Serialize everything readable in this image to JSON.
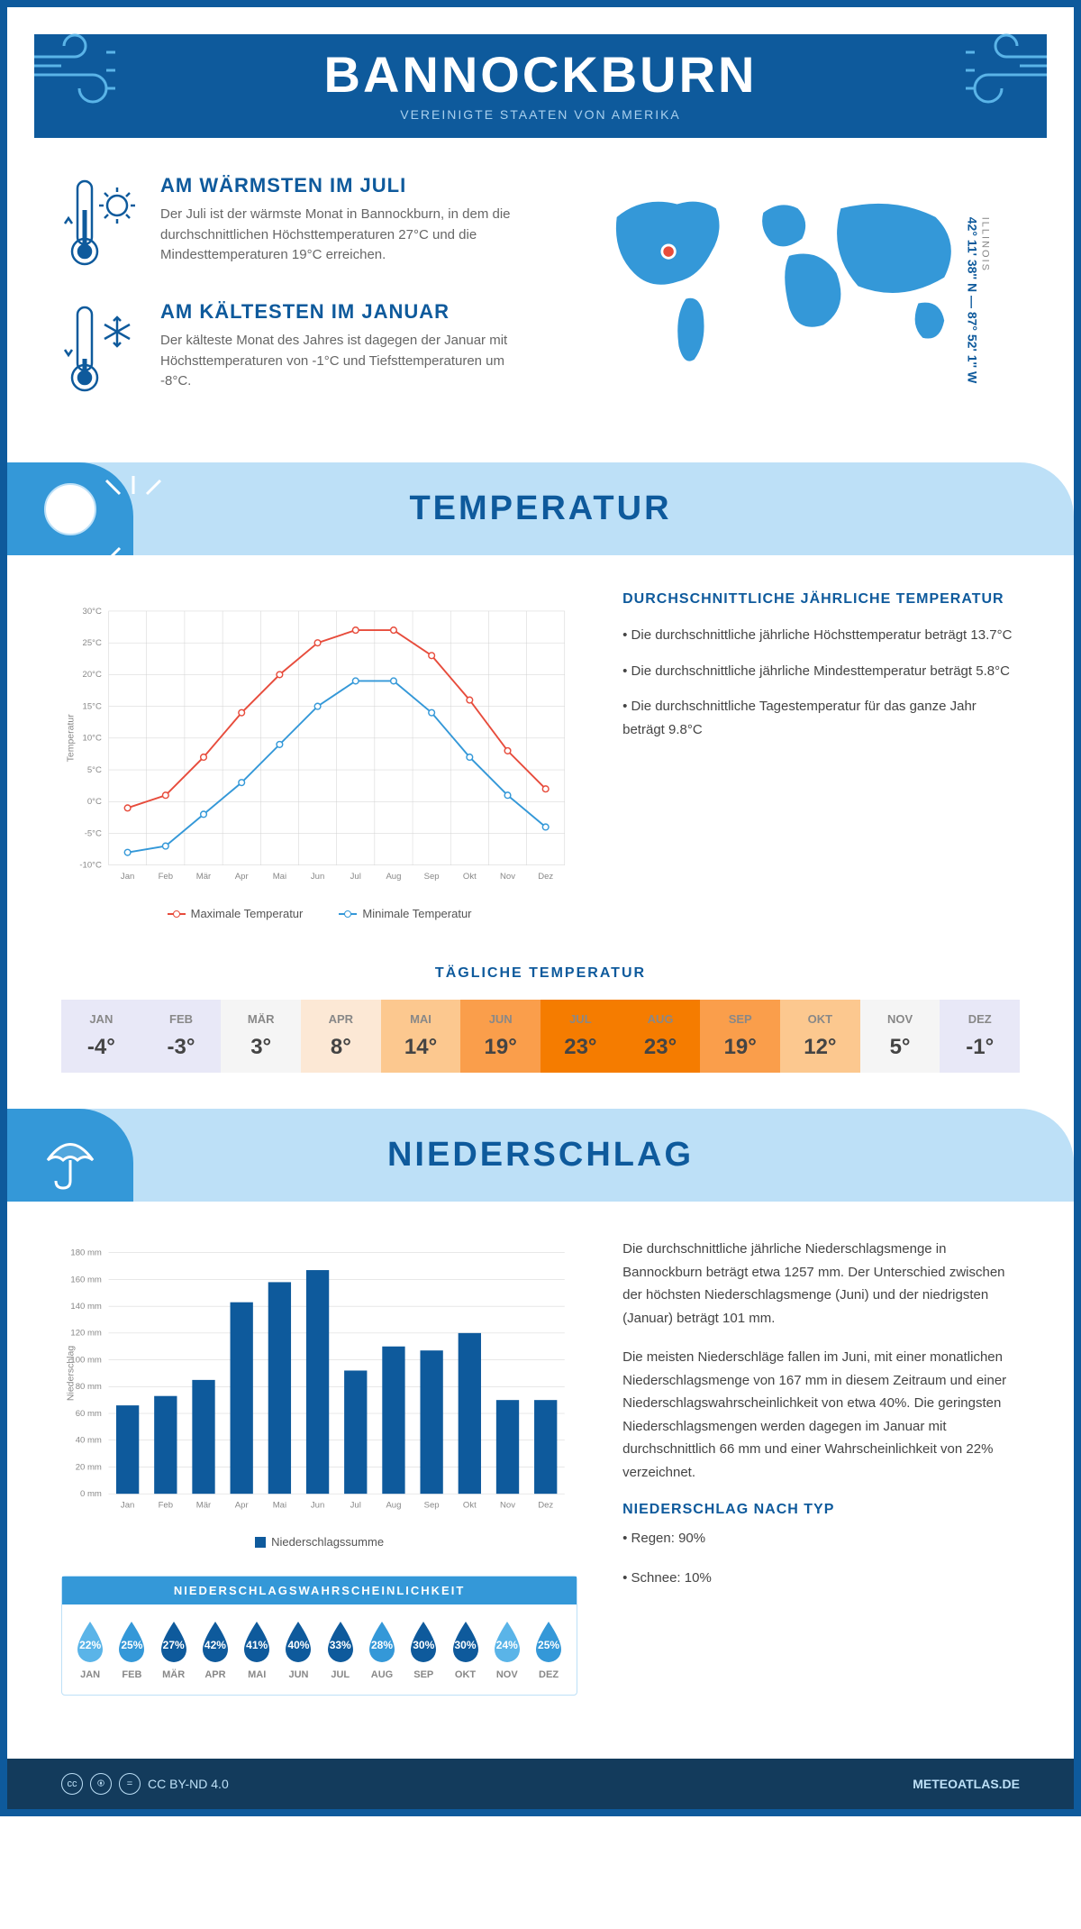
{
  "header": {
    "title": "BANNOCKBURN",
    "subtitle": "VEREINIGTE STAATEN VON AMERIKA"
  },
  "coords": {
    "text": "42° 11' 38'' N — 87° 52' 1'' W",
    "state": "ILLINOIS"
  },
  "facts": {
    "warm": {
      "title": "AM WÄRMSTEN IM JULI",
      "text": "Der Juli ist der wärmste Monat in Bannockburn, in dem die durchschnittlichen Höchsttemperaturen 27°C und die Mindesttemperaturen 19°C erreichen."
    },
    "cold": {
      "title": "AM KÄLTESTEN IM JANUAR",
      "text": "Der kälteste Monat des Jahres ist dagegen der Januar mit Höchsttemperaturen von -1°C und Tiefsttemperaturen um -8°C."
    }
  },
  "sections": {
    "temp": "TEMPERATUR",
    "precip": "NIEDERSCHLAG"
  },
  "tempChart": {
    "months": [
      "Jan",
      "Feb",
      "Mär",
      "Apr",
      "Mai",
      "Jun",
      "Jul",
      "Aug",
      "Sep",
      "Okt",
      "Nov",
      "Dez"
    ],
    "max": [
      -1,
      1,
      7,
      14,
      20,
      25,
      27,
      27,
      23,
      16,
      8,
      2
    ],
    "min": [
      -8,
      -7,
      -2,
      3,
      9,
      15,
      19,
      19,
      14,
      7,
      1,
      -4
    ],
    "ylim": [
      -10,
      30
    ],
    "ytick_step": 5,
    "max_color": "#e74c3c",
    "min_color": "#3498d8",
    "grid_color": "#d0d0d0",
    "background": "#ffffff",
    "y_title": "Temperatur",
    "legend_max": "Maximale Temperatur",
    "legend_min": "Minimale Temperatur"
  },
  "tempInfo": {
    "title": "DURCHSCHNITTLICHE JÄHRLICHE TEMPERATUR",
    "b1": "• Die durchschnittliche jährliche Höchsttemperatur beträgt 13.7°C",
    "b2": "• Die durchschnittliche jährliche Mindesttemperatur beträgt 5.8°C",
    "b3": "• Die durchschnittliche Tagestemperatur für das ganze Jahr beträgt 9.8°C"
  },
  "dailyTemp": {
    "title": "TÄGLICHE TEMPERATUR",
    "months": [
      "JAN",
      "FEB",
      "MÄR",
      "APR",
      "MAI",
      "JUN",
      "JUL",
      "AUG",
      "SEP",
      "OKT",
      "NOV",
      "DEZ"
    ],
    "values": [
      "-4°",
      "-3°",
      "3°",
      "8°",
      "14°",
      "19°",
      "23°",
      "23°",
      "19°",
      "12°",
      "5°",
      "-1°"
    ],
    "colors": [
      "#e8e8f7",
      "#e8e8f7",
      "#f5f5f5",
      "#fce8d5",
      "#fcc88f",
      "#fa9e4b",
      "#f57c00",
      "#f57c00",
      "#fa9e4b",
      "#fcc88f",
      "#f5f5f5",
      "#e8e8f7"
    ]
  },
  "precipChart": {
    "months": [
      "Jan",
      "Feb",
      "Mär",
      "Apr",
      "Mai",
      "Jun",
      "Jul",
      "Aug",
      "Sep",
      "Okt",
      "Nov",
      "Dez"
    ],
    "values": [
      66,
      73,
      85,
      143,
      158,
      167,
      92,
      110,
      107,
      120,
      70,
      70
    ],
    "ylim": [
      0,
      180
    ],
    "ytick_step": 20,
    "bar_color": "#0e5a9c",
    "grid_color": "#d0d0d0",
    "y_title": "Niederschlag",
    "legend": "Niederschlagssumme"
  },
  "precipInfo": {
    "p1": "Die durchschnittliche jährliche Niederschlagsmenge in Bannockburn beträgt etwa 1257 mm. Der Unterschied zwischen der höchsten Niederschlagsmenge (Juni) und der niedrigsten (Januar) beträgt 101 mm.",
    "p2": "Die meisten Niederschläge fallen im Juni, mit einer monatlichen Niederschlagsmenge von 167 mm in diesem Zeitraum und einer Niederschlagswahrscheinlichkeit von etwa 40%. Die geringsten Niederschlagsmengen werden dagegen im Januar mit durchschnittlich 66 mm und einer Wahrscheinlichkeit von 22% verzeichnet.",
    "typeTitle": "NIEDERSCHLAG NACH TYP",
    "t1": "• Regen: 90%",
    "t2": "• Schnee: 10%"
  },
  "probability": {
    "title": "NIEDERSCHLAGSWAHRSCHEINLICHKEIT",
    "months": [
      "JAN",
      "FEB",
      "MÄR",
      "APR",
      "MAI",
      "JUN",
      "JUL",
      "AUG",
      "SEP",
      "OKT",
      "NOV",
      "DEZ"
    ],
    "values": [
      "22%",
      "25%",
      "27%",
      "42%",
      "41%",
      "40%",
      "33%",
      "28%",
      "30%",
      "30%",
      "24%",
      "25%"
    ],
    "colors": [
      "#5ab4e8",
      "#3498d8",
      "#0e5a9c",
      "#0e5a9c",
      "#0e5a9c",
      "#0e5a9c",
      "#0e5a9c",
      "#3498d8",
      "#0e5a9c",
      "#0e5a9c",
      "#5ab4e8",
      "#3498d8"
    ]
  },
  "footer": {
    "license": "CC BY-ND 4.0",
    "site": "METEOATLAS.DE"
  },
  "colors": {
    "primary": "#0e5a9c",
    "light": "#bde0f7",
    "accent": "#3498d8"
  }
}
